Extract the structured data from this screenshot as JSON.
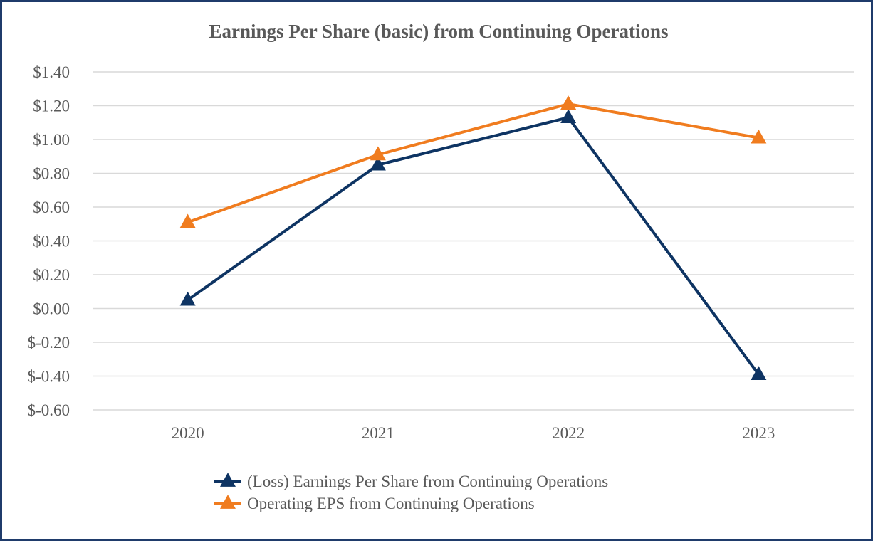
{
  "chart_data": {
    "type": "line",
    "title": "Earnings Per Share (basic) from Continuing Operations",
    "xlabel": "",
    "ylabel": "",
    "categories": [
      "2020",
      "2021",
      "2022",
      "2023"
    ],
    "ylim": [
      -0.6,
      1.4
    ],
    "ytick_step": 0.2,
    "ytick_labels": [
      "$1.40",
      "$1.20",
      "$1.00",
      "$0.80",
      "$0.60",
      "$0.40",
      "$0.20",
      "$0.00",
      "$-0.20",
      "$-0.40",
      "$-0.60"
    ],
    "grid": true,
    "legend_position": "bottom",
    "series": [
      {
        "name": "(Loss) Earnings Per Share from Continuing Operations",
        "values": [
          0.05,
          0.85,
          1.13,
          -0.39
        ],
        "color": "#0e3463",
        "marker": "triangle"
      },
      {
        "name": "Operating EPS from Continuing Operations",
        "values": [
          0.51,
          0.91,
          1.21,
          1.01
        ],
        "color": "#f07c1f",
        "marker": "triangle"
      }
    ]
  }
}
